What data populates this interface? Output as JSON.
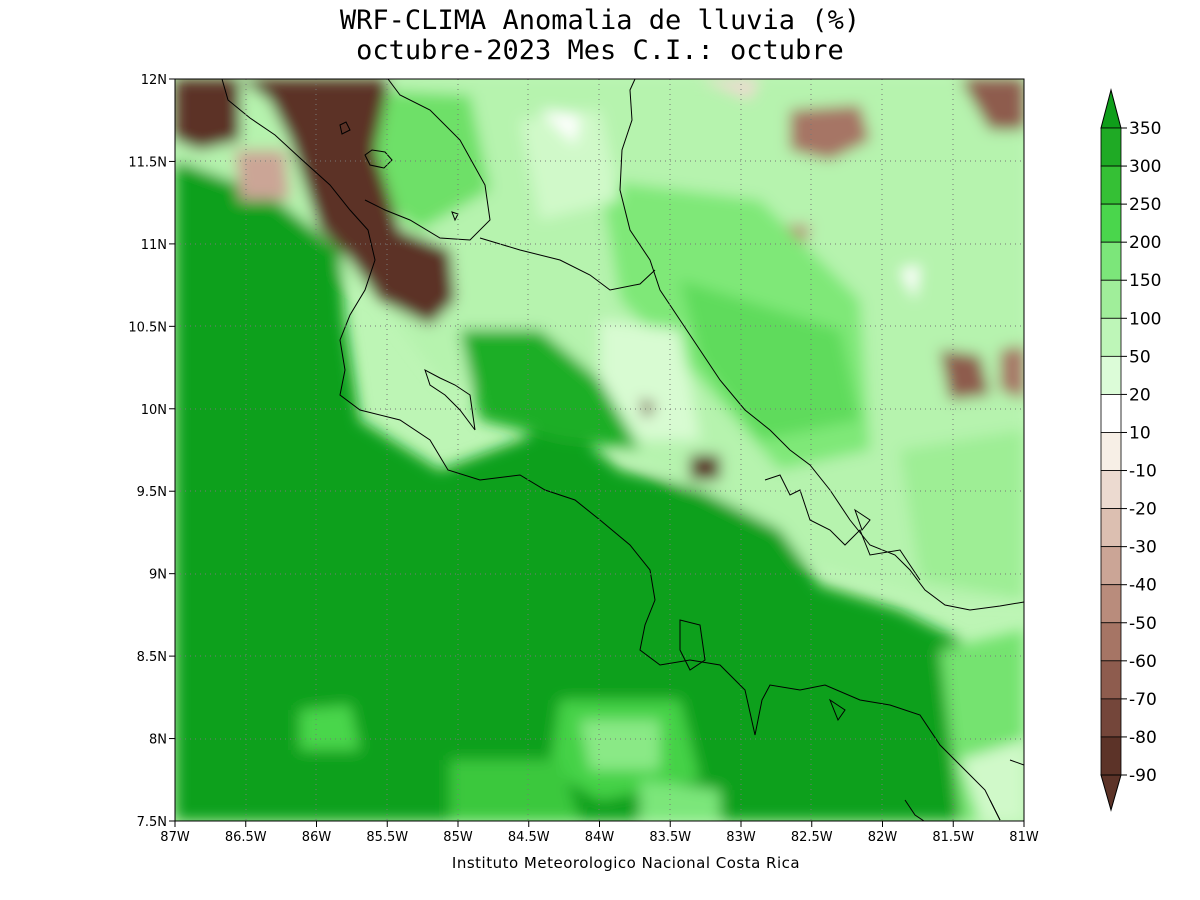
{
  "title": {
    "line1": "WRF-CLIMA Anomalia de lluvia (%)",
    "line2": "octubre-2023 Mes C.I.: octubre"
  },
  "credit": "Instituto Meteorologico Nacional Costa Rica",
  "axes": {
    "lon_range": [
      -87,
      -81
    ],
    "lat_range": [
      7.5,
      12
    ],
    "x_ticks": [
      {
        "value": -87,
        "label": "87W"
      },
      {
        "value": -86.5,
        "label": "86.5W"
      },
      {
        "value": -86,
        "label": "86W"
      },
      {
        "value": -85.5,
        "label": "85.5W"
      },
      {
        "value": -85,
        "label": "85W"
      },
      {
        "value": -84.5,
        "label": "84.5W"
      },
      {
        "value": -84,
        "label": "84W"
      },
      {
        "value": -83.5,
        "label": "83.5W"
      },
      {
        "value": -83,
        "label": "83W"
      },
      {
        "value": -82.5,
        "label": "82.5W"
      },
      {
        "value": -82,
        "label": "82W"
      },
      {
        "value": -81.5,
        "label": "81.5W"
      },
      {
        "value": -81,
        "label": "81W"
      }
    ],
    "y_ticks": [
      {
        "value": 12,
        "label": "12N"
      },
      {
        "value": 11.5,
        "label": "11.5N"
      },
      {
        "value": 11,
        "label": "11N"
      },
      {
        "value": 10.5,
        "label": "10.5N"
      },
      {
        "value": 10,
        "label": "10N"
      },
      {
        "value": 9.5,
        "label": "9.5N"
      },
      {
        "value": 9,
        "label": "9N"
      },
      {
        "value": 8.5,
        "label": "8.5N"
      },
      {
        "value": 8,
        "label": "8N"
      },
      {
        "value": 7.5,
        "label": "7.5N"
      }
    ],
    "grid": "dotted"
  },
  "colorbar": {
    "labels": [
      "350",
      "300",
      "250",
      "200",
      "150",
      "100",
      "50",
      "20",
      "10",
      "-10",
      "-20",
      "-30",
      "-40",
      "-50",
      "-60",
      "-70",
      "-80",
      "-90"
    ],
    "colors": [
      "#0f9e1a",
      "#1faa25",
      "#35c035",
      "#4ad64c",
      "#7ce67a",
      "#a0ee9a",
      "#bef6b8",
      "#dcfcd8",
      "#ffffff",
      "#f7efe6",
      "#ecdad0",
      "#dcbfb1",
      "#cba596",
      "#b98c7c",
      "#a67565",
      "#8e5c4e",
      "#74463a",
      "#5c3328"
    ]
  }
}
